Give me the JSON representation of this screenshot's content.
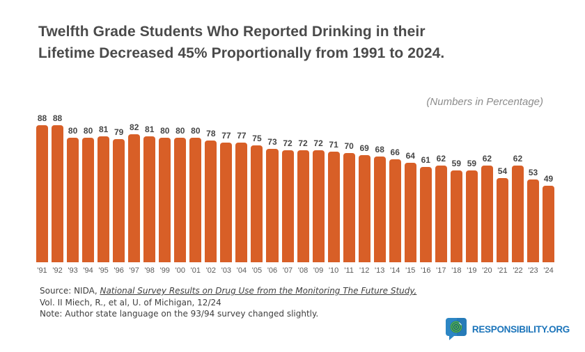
{
  "header": {
    "title_line1": "Twelfth Grade Students Who Reported Drinking in their",
    "title_line2": "Lifetime Decreased 45% Proportionally from 1991 to 2024.",
    "subtitle": "(Numbers in Percentage)"
  },
  "chart_data": {
    "type": "bar",
    "title": "Twelfth Grade Students Who Reported Drinking in their Lifetime Decreased 45% Proportionally from 1991 to 2024.",
    "subtitle": "(Numbers in Percentage)",
    "categories": [
      "'91",
      "'92",
      "'93",
      "'94",
      "'95",
      "'96",
      "'97",
      "'98",
      "'99",
      "'00",
      "'01",
      "'02",
      "'03",
      "'04",
      "'05",
      "'06",
      "'07",
      "'08",
      "'09",
      "'10",
      "'11",
      "'12",
      "'13",
      "'14",
      "'15",
      "'16",
      "'17",
      "'18",
      "'19",
      "'20",
      "'21",
      "'22",
      "'23",
      "'24"
    ],
    "values": [
      88,
      88,
      80,
      80,
      81,
      79,
      82,
      81,
      80,
      80,
      80,
      78,
      77,
      77,
      75,
      73,
      72,
      72,
      72,
      71,
      70,
      69,
      68,
      66,
      64,
      61,
      62,
      59,
      59,
      62,
      54,
      62,
      53,
      49
    ],
    "xlabel": "",
    "ylabel": "",
    "ylim": [
      0,
      100
    ],
    "grid": false,
    "legend": "none",
    "data_labels": "above-bars",
    "bar_color": "#D85F27"
  },
  "source": {
    "prefix": "Source: NIDA, ",
    "citation": "National Survey Results on Drug Use from the Monitoring The Future Study,",
    "line2": "Vol. II Miech, R., et al, U. of Michigan, 12/24",
    "line3": "Note: Author state language on the 93/94 survey changed slightly."
  },
  "logo": {
    "text": "RESPONSIBILITY.ORG",
    "icon": "speech-bubble-target-icon",
    "text_color": "#1B74BA"
  },
  "colors": {
    "background": "#FFFFFF",
    "bar": "#D85F27",
    "title_text": "#4A4A4A",
    "value_label": "#454545",
    "axis_label": "#595959",
    "subtitle_text": "#8C8C8C",
    "source_text": "#3E3E3E",
    "logo_blue": "#1B74BA",
    "logo_bubble_blue": "#2C86C4",
    "logo_target_green": "#54B948"
  }
}
